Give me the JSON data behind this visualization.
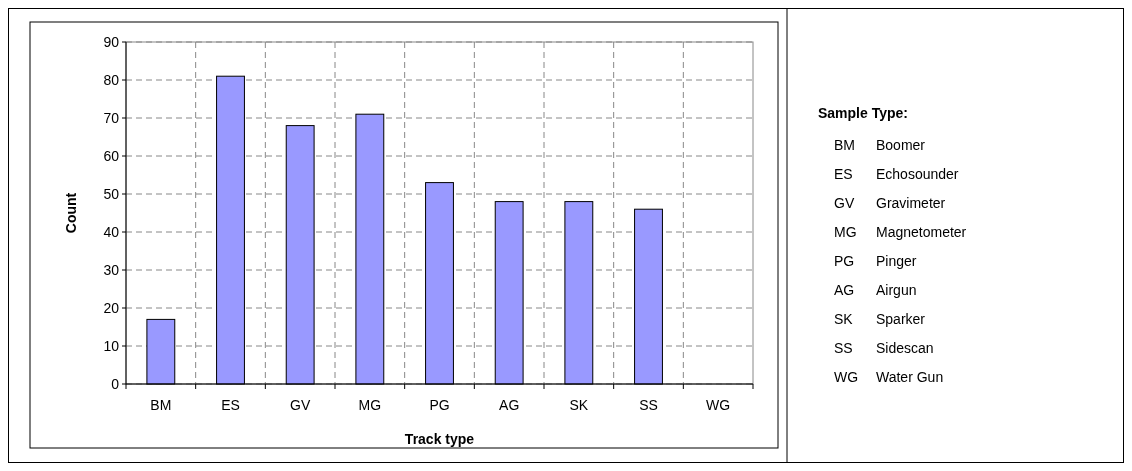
{
  "chart_data": [
    {
      "type": "bar",
      "xlabel": "Track type",
      "ylabel": "Count",
      "categories": [
        "BM",
        "ES",
        "GV",
        "MG",
        "PG",
        "AG",
        "SK",
        "SS",
        "WG"
      ],
      "values": [
        17,
        81,
        68,
        71,
        53,
        48,
        48,
        46,
        0
      ],
      "color": "#9999ff",
      "ylim": [
        0,
        90
      ],
      "yticks": [
        0,
        10,
        20,
        30,
        40,
        50,
        60,
        70,
        80,
        90
      ],
      "grid": true
    },
    {
      "type": "other",
      "title": "Sample Type:",
      "annotations": [
        "BM",
        "Boomer",
        "ES",
        "Echosounder",
        "GV",
        "Gravimeter",
        "MG",
        "Magnetometer",
        "PG",
        "Pinger",
        "AG",
        "Airgun",
        "SK",
        "Sparker",
        "SS",
        "Sidescan",
        "WG",
        "Water Gun"
      ]
    }
  ]
}
